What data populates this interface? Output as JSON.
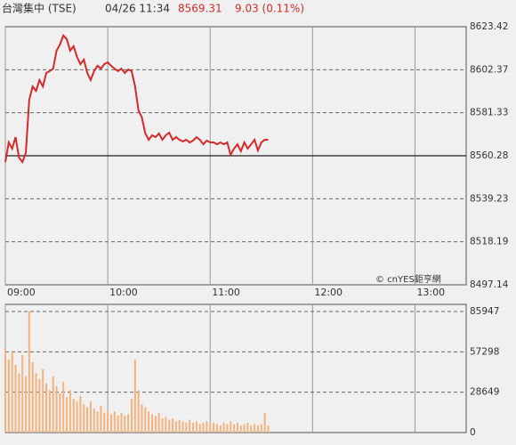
{
  "header": {
    "name": "台灣集中 (TSE)",
    "time": "04/26 11:34",
    "price": "8569.31",
    "change": "9.03 (0.11%)"
  },
  "chart_data": [
    {
      "type": "line",
      "color": "#d42a2a",
      "annotation": "© cnYES鉅亨網",
      "x": [
        0,
        2,
        4,
        6,
        8,
        10,
        12,
        14,
        16,
        18,
        20,
        22,
        24,
        26,
        28,
        30,
        32,
        34,
        36,
        38,
        40,
        42,
        44,
        46,
        48,
        50,
        52,
        54,
        56,
        58,
        60,
        62,
        64,
        66,
        68,
        70,
        72,
        74,
        76,
        78,
        80,
        82,
        84,
        86,
        88,
        90,
        92,
        94,
        96,
        98,
        100,
        102,
        104,
        106,
        108,
        110,
        112,
        114,
        116,
        118,
        120,
        122,
        124,
        126,
        128,
        130,
        132,
        134,
        136,
        138,
        140,
        142,
        144,
        146,
        148,
        150,
        152,
        154
      ],
      "values": [
        8557.2,
        8566.8,
        8563.8,
        8569.4,
        8559.4,
        8557.2,
        8561.6,
        8587.7,
        8594.2,
        8592.0,
        8597.3,
        8594.2,
        8600.8,
        8601.7,
        8602.9,
        8611.7,
        8614.7,
        8619.1,
        8617.3,
        8611.7,
        8613.9,
        8608.6,
        8605.1,
        8607.3,
        8600.8,
        8597.3,
        8601.7,
        8604.3,
        8602.9,
        8605.1,
        8606.0,
        8604.3,
        8602.9,
        8601.7,
        8602.9,
        8600.8,
        8602.5,
        8601.7,
        8594.2,
        8582.5,
        8579.0,
        8571.2,
        8568.1,
        8570.3,
        8569.4,
        8571.2,
        8568.1,
        8570.3,
        8571.6,
        8568.1,
        8569.4,
        8568.1,
        8567.3,
        8568.1,
        8566.8,
        8567.7,
        8569.4,
        8568.1,
        8565.9,
        8567.7,
        8566.8,
        8566.8,
        8565.9,
        8566.8,
        8565.9,
        8566.8,
        8560.7,
        8563.8,
        8565.9,
        8562.5,
        8566.8,
        8563.8,
        8565.9,
        8568.1,
        8562.9,
        8566.8,
        8568.1,
        8568.1
      ],
      "xlim": [
        0,
        270
      ],
      "xticks": [
        {
          "value": 0,
          "label": "09:00"
        },
        {
          "value": 60,
          "label": "10:00"
        },
        {
          "value": 120,
          "label": "11:00"
        },
        {
          "value": 180,
          "label": "12:00"
        },
        {
          "value": 240,
          "label": "13:00"
        }
      ],
      "ylim": [
        8497.14,
        8623.42
      ],
      "yticks": [
        8497.14,
        8518.19,
        8539.23,
        8560.28,
        8581.33,
        8602.37,
        8623.42
      ],
      "reference": 8560.28
    },
    {
      "type": "bar",
      "color": "#f5b27c",
      "values": [
        60000,
        52000,
        58000,
        48000,
        42000,
        55000,
        40000,
        85947,
        50000,
        42000,
        38000,
        45000,
        35000,
        30000,
        40000,
        33000,
        28000,
        36000,
        25000,
        30000,
        24000,
        22000,
        26000,
        20000,
        18000,
        22000,
        17000,
        15000,
        19000,
        14000,
        16000,
        13000,
        15000,
        12000,
        14000,
        12000,
        13000,
        24000,
        52000,
        30000,
        20000,
        18000,
        15000,
        13000,
        12000,
        14000,
        10000,
        11000,
        9000,
        10000,
        8000,
        9000,
        8000,
        7000,
        9000,
        7000,
        8000,
        6000,
        7000,
        8000,
        6000,
        7000,
        6000,
        5000,
        7000,
        6000,
        8000,
        6000,
        7000,
        5000,
        6000,
        7000,
        5000,
        6000,
        5000,
        6000,
        14000,
        5000
      ],
      "ylim": [
        0,
        91000
      ],
      "yticks": [
        0,
        28649,
        57298,
        85947
      ]
    }
  ]
}
